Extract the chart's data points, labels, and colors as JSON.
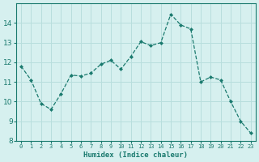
{
  "x": [
    0,
    1,
    2,
    3,
    4,
    5,
    6,
    7,
    8,
    9,
    10,
    11,
    12,
    13,
    14,
    15,
    16,
    17,
    18,
    19,
    20,
    21,
    22,
    23
  ],
  "y": [
    11.8,
    11.1,
    9.9,
    9.6,
    10.4,
    11.35,
    11.3,
    11.45,
    11.9,
    12.1,
    11.65,
    12.3,
    13.05,
    12.85,
    13.0,
    14.45,
    13.9,
    13.7,
    11.0,
    11.25,
    11.1,
    10.0,
    9.0,
    8.4
  ],
  "xlabel": "Humidex (Indice chaleur)",
  "xlim": [
    -0.5,
    23.5
  ],
  "ylim": [
    8,
    15
  ],
  "yticks": [
    8,
    9,
    10,
    11,
    12,
    13,
    14
  ],
  "xtick_labels": [
    "0",
    "1",
    "2",
    "3",
    "4",
    "5",
    "6",
    "7",
    "8",
    "9",
    "10",
    "11",
    "12",
    "13",
    "14",
    "15",
    "16",
    "17",
    "18",
    "19",
    "20",
    "21",
    "22",
    "23"
  ],
  "line_color": "#1a7a6e",
  "marker_color": "#1a7a6e",
  "bg_color": "#d6f0ef",
  "grid_color": "#b8dedd",
  "label_color": "#1a7a6e",
  "tick_color": "#1a7a6e"
}
